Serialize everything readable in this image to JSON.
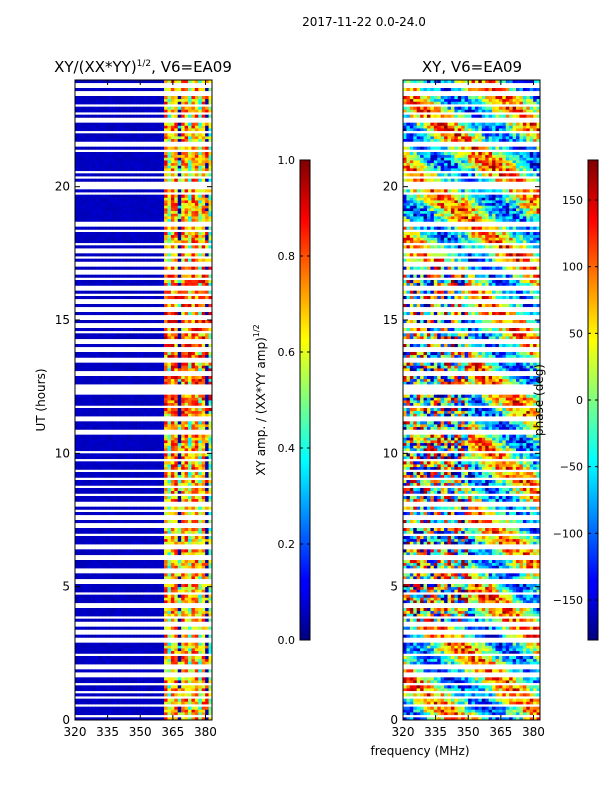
{
  "figure": {
    "suptitle": "2017-11-22 0.0-24.0",
    "shared_xlabel": "frequency (MHz)"
  },
  "chart_data": [
    {
      "type": "heatmap",
      "title": "XY/(XX*YY)",
      "title_exponent": "1/2",
      "title_suffix": ", V6=EA09",
      "xlabel": "frequency (MHz)",
      "ylabel": "UT (hours)",
      "xlim": [
        320,
        383
      ],
      "ylim": [
        0,
        24
      ],
      "xticks": [
        320,
        335,
        350,
        365,
        380
      ],
      "yticks": [
        0,
        5,
        10,
        15,
        20
      ],
      "colormap": "jet",
      "colorbar": {
        "label": "XY amp. / (XX*YY amp)",
        "label_exponent": "1/2",
        "range": [
          0.0,
          1.0
        ],
        "ticks": [
          "0.0",
          "0.2",
          "0.4",
          "0.6",
          "0.8",
          "1.0"
        ]
      },
      "description_values": {
        "low_band_mhz": [
          320,
          361
        ],
        "low_band_value": 0.05,
        "high_band_mhz": [
          361,
          383
        ],
        "high_band_value_range": [
          0.3,
          0.9
        ]
      }
    },
    {
      "type": "heatmap",
      "title": "XY, V6=EA09",
      "xlabel": "frequency (MHz)",
      "ylabel": "",
      "xlim": [
        320,
        383
      ],
      "ylim": [
        0,
        24
      ],
      "xticks": [
        320,
        335,
        350,
        365,
        380
      ],
      "yticks": [
        0,
        5,
        10,
        15,
        20
      ],
      "colormap": "jet",
      "colorbar": {
        "label": "phase (deg)",
        "range": [
          -180,
          180
        ],
        "ticks": [
          "−150",
          "−100",
          "−50",
          "0",
          "50",
          "100",
          "150"
        ]
      }
    }
  ],
  "flagged_hours": [
    0.12,
    0.55,
    0.85,
    1.05,
    1.35,
    1.7,
    2.0,
    2.45,
    3.0,
    3.3,
    3.6,
    3.85,
    4.3,
    4.75,
    5.2,
    5.6,
    6.1,
    6.5,
    6.95,
    7.3,
    7.6,
    7.85,
    8.1,
    8.45,
    8.75,
    9.05,
    9.35,
    9.75,
    10.05,
    10.8,
    11.3,
    11.75,
    12.3,
    12.5,
    13.0,
    13.5,
    13.9,
    14.2,
    14.55,
    14.8,
    15.1,
    15.4,
    15.7,
    15.95,
    16.2,
    16.55,
    16.8,
    17.1,
    17.35,
    17.6,
    17.85,
    18.35,
    18.6,
    19.75,
    19.95,
    20.1,
    20.35,
    20.55,
    21.35,
    21.6,
    22.05,
    22.5,
    22.75,
    23.05,
    23.5,
    23.8
  ]
}
